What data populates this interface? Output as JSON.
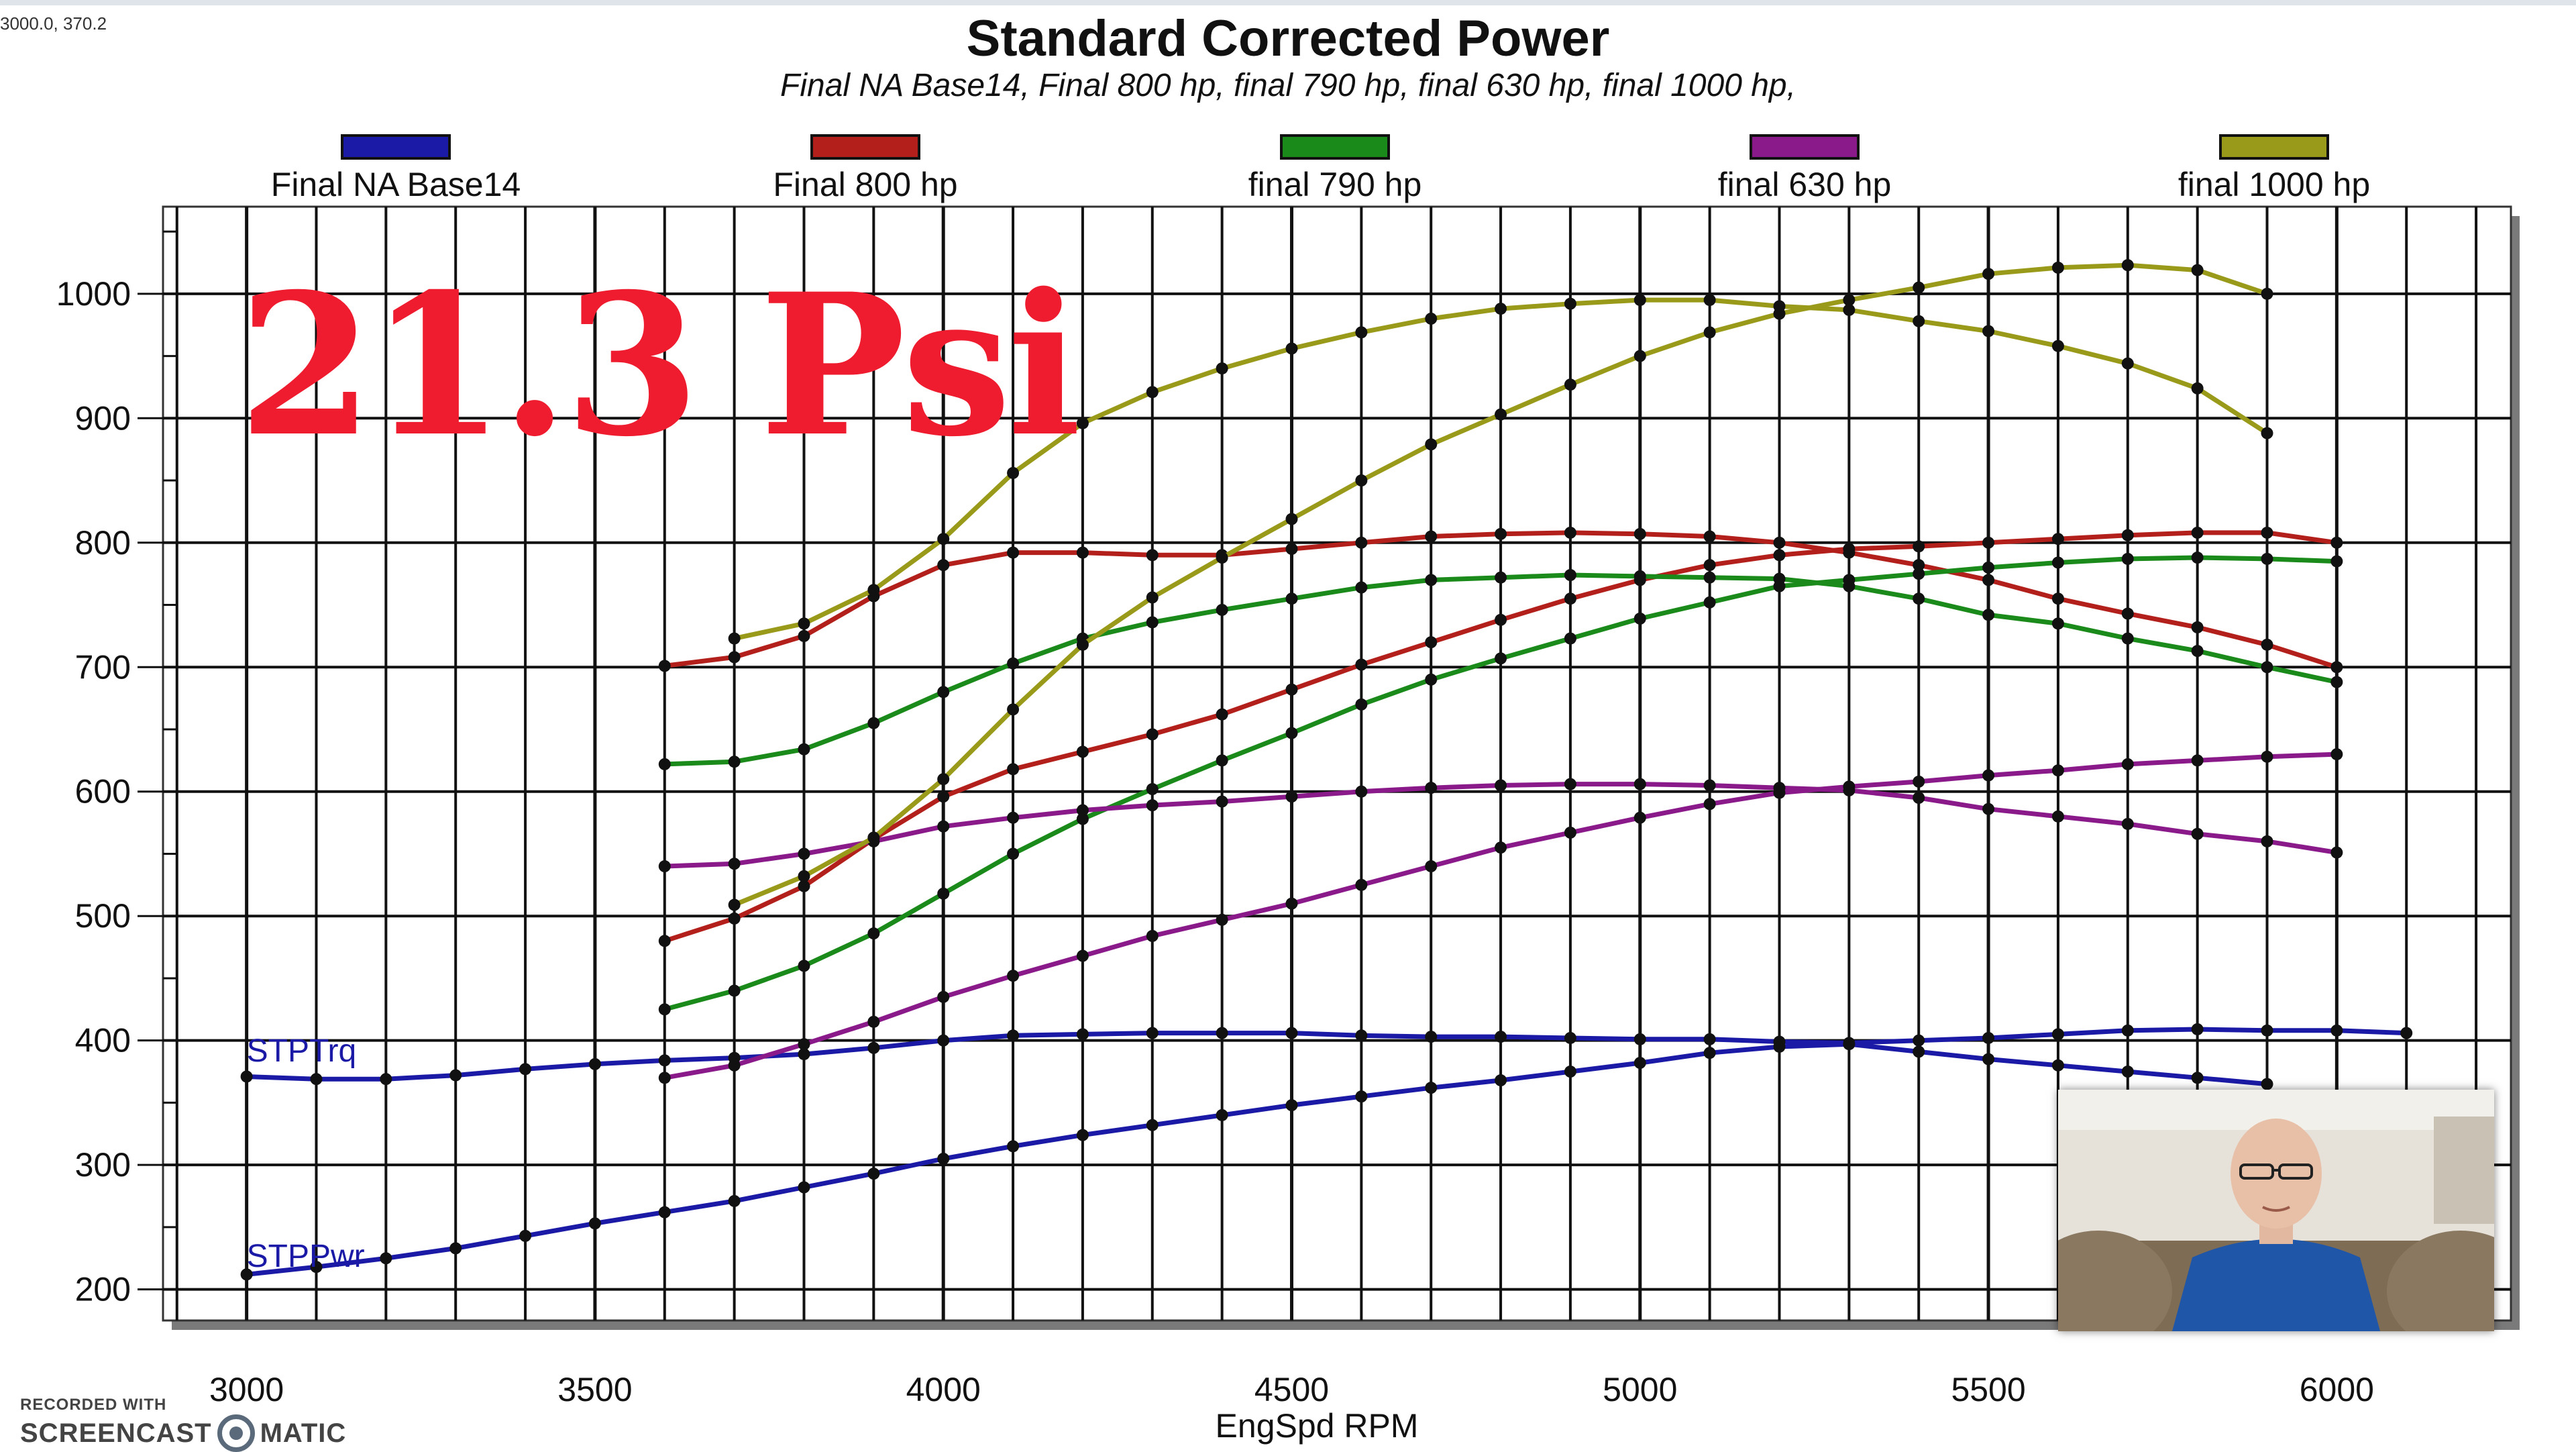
{
  "coordinate_readout": "3000.0, 370.2",
  "overlay_text": "21.3 Psi",
  "watermark": {
    "line1": "RECORDED WITH",
    "line2a": "SCREENCAST",
    "line2b": "MATIC"
  },
  "colors": {
    "blue": "#1a1aa6",
    "red": "#b3201c",
    "green": "#1a8a1a",
    "purple": "#8a1a8a",
    "olive": "#9a9a1a",
    "overlay_red": "#ee1c2e"
  },
  "chart_data": {
    "type": "line",
    "title": "Standard Corrected Power",
    "subtitle": "Final NA Base14, Final 800 hp, final 790 hp, final 630 hp, final 1000 hp,",
    "xlabel": "EngSpd RPM",
    "ylabel": "",
    "xlim": [
      2880,
      6250
    ],
    "ylim": [
      175,
      1070
    ],
    "xticks": [
      3000,
      3500,
      4000,
      4500,
      5000,
      5500,
      6000
    ],
    "yticks": [
      200,
      300,
      400,
      500,
      600,
      700,
      800,
      900,
      1000
    ],
    "grid": true,
    "legend_position": "top",
    "legend": [
      {
        "name": "Final NA Base14",
        "color": "#1a1aa6"
      },
      {
        "name": "Final 800 hp",
        "color": "#b3201c"
      },
      {
        "name": "final 790 hp",
        "color": "#1a8a1a"
      },
      {
        "name": "final 630 hp",
        "color": "#8a1a8a"
      },
      {
        "name": "final 1000 hp",
        "color": "#9a9a1a"
      }
    ],
    "curve_labels": [
      {
        "text": "STPTrq",
        "x": 3000,
        "y": 380
      },
      {
        "text": "STPPwr",
        "x": 3000,
        "y": 215
      }
    ],
    "series": [
      {
        "name": "Final NA Base14",
        "measure": "STPTrq",
        "color": "#1a1aa6",
        "x": [
          3000,
          3100,
          3200,
          3300,
          3400,
          3500,
          3600,
          3700,
          3800,
          3900,
          4000,
          4100,
          4200,
          4300,
          4400,
          4500,
          4600,
          4700,
          4800,
          4900,
          5000,
          5100,
          5200,
          5300,
          5400,
          5500,
          5600,
          5700,
          5800,
          5900,
          6000,
          6100
        ],
        "y": [
          371,
          369,
          369,
          372,
          377,
          381,
          384,
          386,
          389,
          394,
          400,
          404,
          405,
          406,
          406,
          406,
          404,
          403,
          403,
          402,
          401,
          401,
          399,
          398,
          400,
          402,
          405,
          408,
          409,
          408,
          408,
          406
        ]
      },
      {
        "name": "Final NA Base14",
        "measure": "STPPwr",
        "color": "#1a1aa6",
        "x": [
          3000,
          3100,
          3200,
          3300,
          3400,
          3500,
          3600,
          3700,
          3800,
          3900,
          4000,
          4100,
          4200,
          4300,
          4400,
          4500,
          4600,
          4700,
          4800,
          4900,
          5000,
          5100,
          5200,
          5300,
          5400,
          5500,
          5600,
          5700,
          5800,
          5900
        ],
        "y": [
          212,
          218,
          225,
          233,
          243,
          253,
          262,
          271,
          282,
          293,
          305,
          315,
          324,
          332,
          340,
          348,
          355,
          362,
          368,
          375,
          382,
          390,
          395,
          397,
          391,
          385,
          380,
          375,
          370,
          365
        ]
      },
      {
        "name": "Final 800 hp",
        "measure": "STPTrq",
        "color": "#b3201c",
        "x": [
          3600,
          3700,
          3800,
          3900,
          4000,
          4100,
          4200,
          4300,
          4400,
          4500,
          4600,
          4700,
          4800,
          4900,
          5000,
          5100,
          5200,
          5300,
          5400,
          5500,
          5600,
          5700,
          5800,
          5900,
          6000
        ],
        "y": [
          701,
          708,
          725,
          757,
          782,
          792,
          792,
          790,
          790,
          795,
          800,
          805,
          807,
          808,
          807,
          805,
          800,
          792,
          782,
          770,
          755,
          743,
          732,
          718,
          700
        ]
      },
      {
        "name": "Final 800 hp",
        "measure": "STPPwr",
        "color": "#b3201c",
        "x": [
          3600,
          3700,
          3800,
          3900,
          4000,
          4100,
          4200,
          4300,
          4400,
          4500,
          4600,
          4700,
          4800,
          4900,
          5000,
          5100,
          5200,
          5300,
          5400,
          5500,
          5600,
          5700,
          5800,
          5900,
          6000
        ],
        "y": [
          480,
          498,
          524,
          562,
          596,
          618,
          632,
          646,
          662,
          682,
          702,
          720,
          738,
          755,
          770,
          782,
          790,
          795,
          797,
          800,
          803,
          806,
          808,
          808,
          800
        ]
      },
      {
        "name": "final 790 hp",
        "measure": "STPTrq",
        "color": "#1a8a1a",
        "x": [
          3600,
          3700,
          3800,
          3900,
          4000,
          4100,
          4200,
          4300,
          4400,
          4500,
          4600,
          4700,
          4800,
          4900,
          5000,
          5100,
          5200,
          5300,
          5400,
          5500,
          5600,
          5700,
          5800,
          5900,
          6000
        ],
        "y": [
          622,
          624,
          634,
          655,
          680,
          703,
          723,
          736,
          746,
          755,
          764,
          770,
          772,
          774,
          773,
          772,
          771,
          765,
          755,
          742,
          735,
          723,
          713,
          700,
          688
        ]
      },
      {
        "name": "final 790 hp",
        "measure": "STPPwr",
        "color": "#1a8a1a",
        "x": [
          3600,
          3700,
          3800,
          3900,
          4000,
          4100,
          4200,
          4300,
          4400,
          4500,
          4600,
          4700,
          4800,
          4900,
          5000,
          5100,
          5200,
          5300,
          5400,
          5500,
          5600,
          5700,
          5800,
          5900,
          6000
        ],
        "y": [
          425,
          440,
          460,
          486,
          518,
          550,
          578,
          602,
          625,
          647,
          670,
          690,
          707,
          723,
          739,
          752,
          765,
          770,
          775,
          780,
          784,
          787,
          788,
          787,
          785
        ]
      },
      {
        "name": "final 630 hp",
        "measure": "STPTrq",
        "color": "#8a1a8a",
        "x": [
          3600,
          3700,
          3800,
          3900,
          4000,
          4100,
          4200,
          4300,
          4400,
          4500,
          4600,
          4700,
          4800,
          4900,
          5000,
          5100,
          5200,
          5300,
          5400,
          5500,
          5600,
          5700,
          5800,
          5900,
          6000
        ],
        "y": [
          540,
          542,
          550,
          560,
          572,
          579,
          585,
          589,
          592,
          596,
          600,
          603,
          605,
          606,
          606,
          605,
          603,
          601,
          595,
          586,
          580,
          574,
          566,
          560,
          551
        ]
      },
      {
        "name": "final 630 hp",
        "measure": "STPPwr",
        "color": "#8a1a8a",
        "x": [
          3600,
          3700,
          3800,
          3900,
          4000,
          4100,
          4200,
          4300,
          4400,
          4500,
          4600,
          4700,
          4800,
          4900,
          5000,
          5100,
          5200,
          5300,
          5400,
          5500,
          5600,
          5700,
          5800,
          5900,
          6000
        ],
        "y": [
          370,
          380,
          397,
          415,
          435,
          452,
          468,
          484,
          497,
          510,
          525,
          540,
          555,
          567,
          579,
          590,
          599,
          604,
          608,
          613,
          617,
          622,
          625,
          628,
          630
        ]
      },
      {
        "name": "final 1000 hp",
        "measure": "STPTrq",
        "color": "#9a9a1a",
        "x": [
          3700,
          3800,
          3900,
          4000,
          4100,
          4200,
          4300,
          4400,
          4500,
          4600,
          4700,
          4800,
          4900,
          5000,
          5100,
          5200,
          5300,
          5400,
          5500,
          5600,
          5700,
          5800,
          5900
        ],
        "y": [
          723,
          735,
          762,
          803,
          856,
          896,
          921,
          940,
          956,
          969,
          980,
          988,
          992,
          995,
          995,
          990,
          987,
          978,
          970,
          958,
          944,
          924,
          888
        ]
      },
      {
        "name": "final 1000 hp",
        "measure": "STPPwr",
        "color": "#9a9a1a",
        "x": [
          3700,
          3800,
          3900,
          4000,
          4100,
          4200,
          4300,
          4400,
          4500,
          4600,
          4700,
          4800,
          4900,
          5000,
          5100,
          5200,
          5300,
          5400,
          5500,
          5600,
          5700,
          5800,
          5900
        ],
        "y": [
          509,
          532,
          563,
          610,
          666,
          718,
          756,
          788,
          819,
          850,
          879,
          903,
          927,
          950,
          969,
          984,
          995,
          1005,
          1016,
          1021,
          1023,
          1019,
          1000
        ]
      }
    ]
  }
}
